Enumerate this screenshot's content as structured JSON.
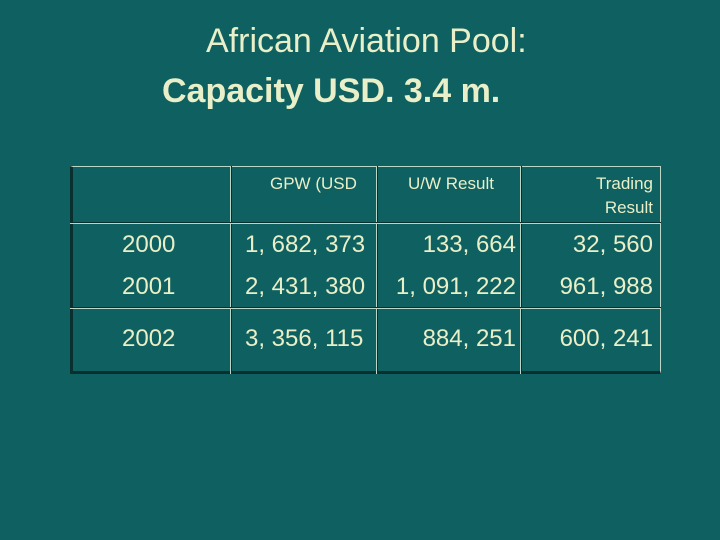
{
  "title": {
    "line1": "African Aviation Pool:",
    "line2": "Capacity USD. 3.4 m."
  },
  "table": {
    "headers": {
      "year": "",
      "gpw": "GPW (USD",
      "uw": "U/W Result",
      "trading_line1": "Trading",
      "trading_line2": "Result"
    },
    "rows": [
      {
        "year": "2000",
        "gpw": "1, 682, 373",
        "uw": "133, 664",
        "trading": "32, 560"
      },
      {
        "year": "2001",
        "gpw": "2, 431, 380",
        "uw": "1, 091, 222",
        "trading": "961, 988"
      },
      {
        "year": "2002",
        "gpw": "3, 356, 115",
        "uw": "884, 251",
        "trading": "600, 241"
      }
    ]
  }
}
